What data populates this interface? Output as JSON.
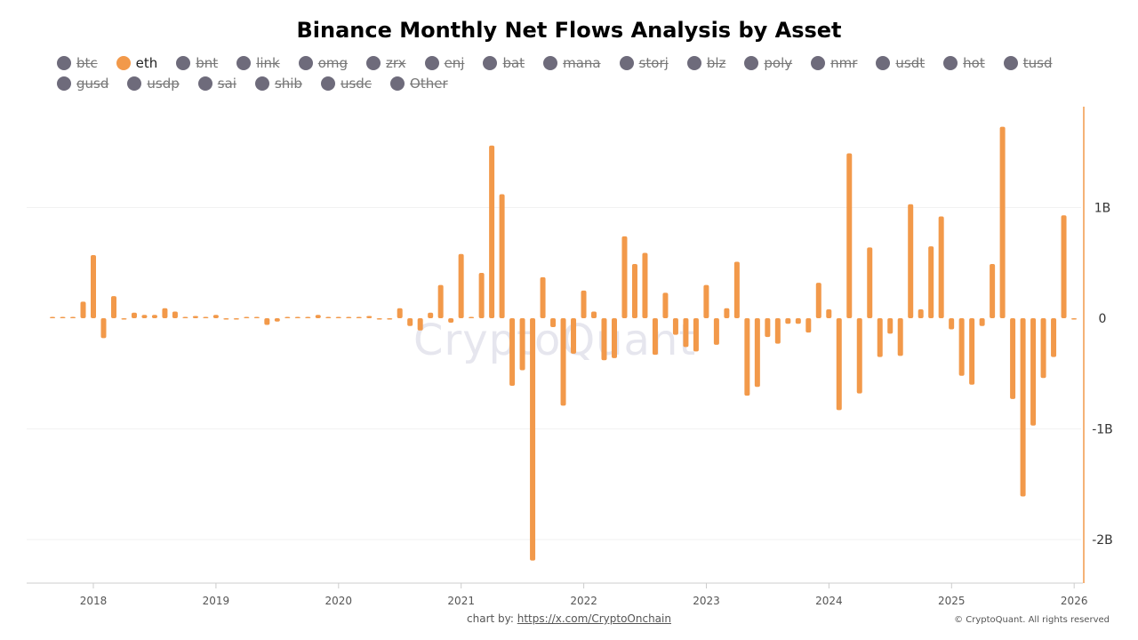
{
  "chart_data": {
    "type": "bar",
    "title": "Binance Monthly Net Flows Analysis by Asset",
    "legend": [
      {
        "name": "btc",
        "active": false
      },
      {
        "name": "eth",
        "active": true
      },
      {
        "name": "bnt",
        "active": false
      },
      {
        "name": "link",
        "active": false
      },
      {
        "name": "omg",
        "active": false
      },
      {
        "name": "zrx",
        "active": false
      },
      {
        "name": "enj",
        "active": false
      },
      {
        "name": "bat",
        "active": false
      },
      {
        "name": "mana",
        "active": false
      },
      {
        "name": "storj",
        "active": false
      },
      {
        "name": "blz",
        "active": false
      },
      {
        "name": "poly",
        "active": false
      },
      {
        "name": "nmr",
        "active": false
      },
      {
        "name": "usdt",
        "active": false
      },
      {
        "name": "hot",
        "active": false
      },
      {
        "name": "tusd",
        "active": false
      },
      {
        "name": "gusd",
        "active": false
      },
      {
        "name": "usdp",
        "active": false
      },
      {
        "name": "sai",
        "active": false
      },
      {
        "name": "shib",
        "active": false
      },
      {
        "name": "usdc",
        "active": false
      },
      {
        "name": "Other",
        "active": false
      }
    ],
    "legend_placement": "top",
    "x_ticks": [
      "2018",
      "2019",
      "2020",
      "2021",
      "2022",
      "2023",
      "2024",
      "2025",
      "2026"
    ],
    "y_ticks": [
      {
        "v": 1,
        "label": "1B"
      },
      {
        "v": 0,
        "label": "0"
      },
      {
        "v": -1,
        "label": "-1B"
      },
      {
        "v": -2,
        "label": "-2B"
      }
    ],
    "ylim": [
      -2.4,
      1.9
    ],
    "y_axis_side": "right",
    "units": "billions",
    "grid": true,
    "colors": {
      "eth": "#f2994a",
      "inactive": "#6e6b7b",
      "axis": "#f2994a"
    },
    "series": [
      {
        "name": "eth",
        "categories": [
          "2017-09",
          "2017-10",
          "2017-11",
          "2017-12",
          "2018-01",
          "2018-02",
          "2018-03",
          "2018-04",
          "2018-05",
          "2018-06",
          "2018-07",
          "2018-08",
          "2018-09",
          "2018-10",
          "2018-11",
          "2018-12",
          "2019-01",
          "2019-02",
          "2019-03",
          "2019-04",
          "2019-05",
          "2019-06",
          "2019-07",
          "2019-08",
          "2019-09",
          "2019-10",
          "2019-11",
          "2019-12",
          "2020-01",
          "2020-02",
          "2020-03",
          "2020-04",
          "2020-05",
          "2020-06",
          "2020-07",
          "2020-08",
          "2020-09",
          "2020-10",
          "2020-11",
          "2020-12",
          "2021-01",
          "2021-02",
          "2021-03",
          "2021-04",
          "2021-05",
          "2021-06",
          "2021-07",
          "2021-08",
          "2021-09",
          "2021-10",
          "2021-11",
          "2021-12",
          "2022-01",
          "2022-02",
          "2022-03",
          "2022-04",
          "2022-05",
          "2022-06",
          "2022-07",
          "2022-08",
          "2022-09",
          "2022-10",
          "2022-11",
          "2022-12",
          "2023-01",
          "2023-02",
          "2023-03",
          "2023-04",
          "2023-05",
          "2023-06",
          "2023-07",
          "2023-08",
          "2023-09",
          "2023-10",
          "2023-11",
          "2023-12",
          "2024-01",
          "2024-02",
          "2024-03",
          "2024-04",
          "2024-05",
          "2024-06",
          "2024-07",
          "2024-08",
          "2024-09",
          "2024-10",
          "2024-11",
          "2024-12",
          "2025-01",
          "2025-02",
          "2025-03",
          "2025-04",
          "2025-05",
          "2025-06",
          "2025-07",
          "2025-08",
          "2025-09",
          "2025-10",
          "2025-11",
          "2025-12",
          "2026-01"
        ],
        "values": [
          0,
          0,
          0.01,
          0.15,
          0.57,
          -0.18,
          0.2,
          -0.01,
          0.05,
          0.03,
          0.03,
          0.09,
          0.06,
          0,
          0.02,
          0.01,
          0.03,
          -0.01,
          -0.01,
          0.01,
          0,
          -0.06,
          -0.03,
          0.01,
          0,
          0,
          0.03,
          0,
          0.01,
          0.01,
          0,
          0.02,
          -0.01,
          -0.01,
          0.09,
          -0.07,
          -0.11,
          0.05,
          0.3,
          -0.04,
          0.58,
          0.01,
          0.41,
          1.56,
          1.12,
          -0.61,
          -0.47,
          -2.19,
          0.37,
          -0.08,
          -0.79,
          -0.32,
          0.25,
          0.06,
          -0.38,
          -0.36,
          0.74,
          0.49,
          0.59,
          -0.33,
          0.23,
          -0.15,
          -0.26,
          -0.3,
          0.3,
          -0.24,
          0.09,
          0.51,
          -0.7,
          -0.62,
          -0.17,
          -0.23,
          -0.05,
          -0.05,
          -0.13,
          0.32,
          0.08,
          -0.83,
          1.49,
          -0.68,
          0.64,
          -0.35,
          -0.14,
          -0.34,
          1.03,
          0.08,
          0.65,
          0.92,
          -0.1,
          -0.52,
          -0.6,
          -0.07,
          0.49,
          1.73,
          -0.73,
          -1.61,
          -0.97,
          -0.54,
          -0.35,
          0.93,
          -0.01
        ]
      }
    ]
  },
  "watermark": "CryptoQuant",
  "footer": {
    "prefix": "chart by: ",
    "link": "https://x.com/CryptoOnchain",
    "copyright": "© CryptoQuant. All rights reserved"
  }
}
